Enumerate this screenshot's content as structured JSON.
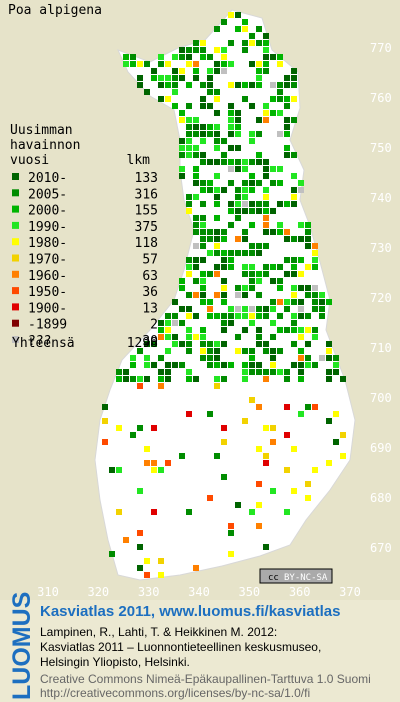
{
  "title": "Poa alpigena",
  "legend": {
    "heading": [
      "Uusimman",
      "havainnon"
    ],
    "columns": [
      "vuosi",
      "lkm"
    ],
    "rows": [
      {
        "label": "2010-",
        "count": 133,
        "color": "#006400"
      },
      {
        "label": "2005-",
        "count": 316,
        "color": "#008c00"
      },
      {
        "label": "2000-",
        "count": 155,
        "color": "#00b400"
      },
      {
        "label": "1990-",
        "count": 375,
        "color": "#22e622"
      },
      {
        "label": "1980-",
        "count": 118,
        "color": "#ffff00"
      },
      {
        "label": "1970-",
        "count": 57,
        "color": "#f2d200"
      },
      {
        "label": "1960-",
        "count": 63,
        "color": "#ff8000"
      },
      {
        "label": "1950-",
        "count": 36,
        "color": "#ff4a00"
      },
      {
        "label": "1900-",
        "count": 13,
        "color": "#e00000"
      },
      {
        "label": "-1899",
        "count": 2,
        "color": "#800000"
      },
      {
        "label": "???",
        "count": 30,
        "color": "#c0c0c0"
      }
    ],
    "total_label": "Yhteensä",
    "total": 1298
  },
  "axes": {
    "y_ticks": [
      770,
      760,
      750,
      740,
      730,
      720,
      710,
      700,
      690,
      680,
      670
    ],
    "x_ticks": [
      310,
      320,
      330,
      340,
      350,
      360,
      370
    ]
  },
  "badge": {
    "icon": "cc",
    "text": "BY-NC-SA"
  },
  "footer": {
    "logo": "LUOMUS",
    "title": "Kasviatlas 2011, www.luomus.fi/kasviatlas",
    "citation": [
      "Lampinen, R., Lahti, T. & Heikkinen M. 2012:",
      "Kasviatlas 2011 – Luonnontieteellinen keskusmuseo,",
      "Helsingin Yliopisto, Helsinki."
    ],
    "license": [
      "Creative Commons Nimeä-Epäkaupallinen-Tarttuva 1.0 Suomi",
      "http://creativecommons.org/licenses/by-nc-sa/1.0/fi"
    ]
  }
}
